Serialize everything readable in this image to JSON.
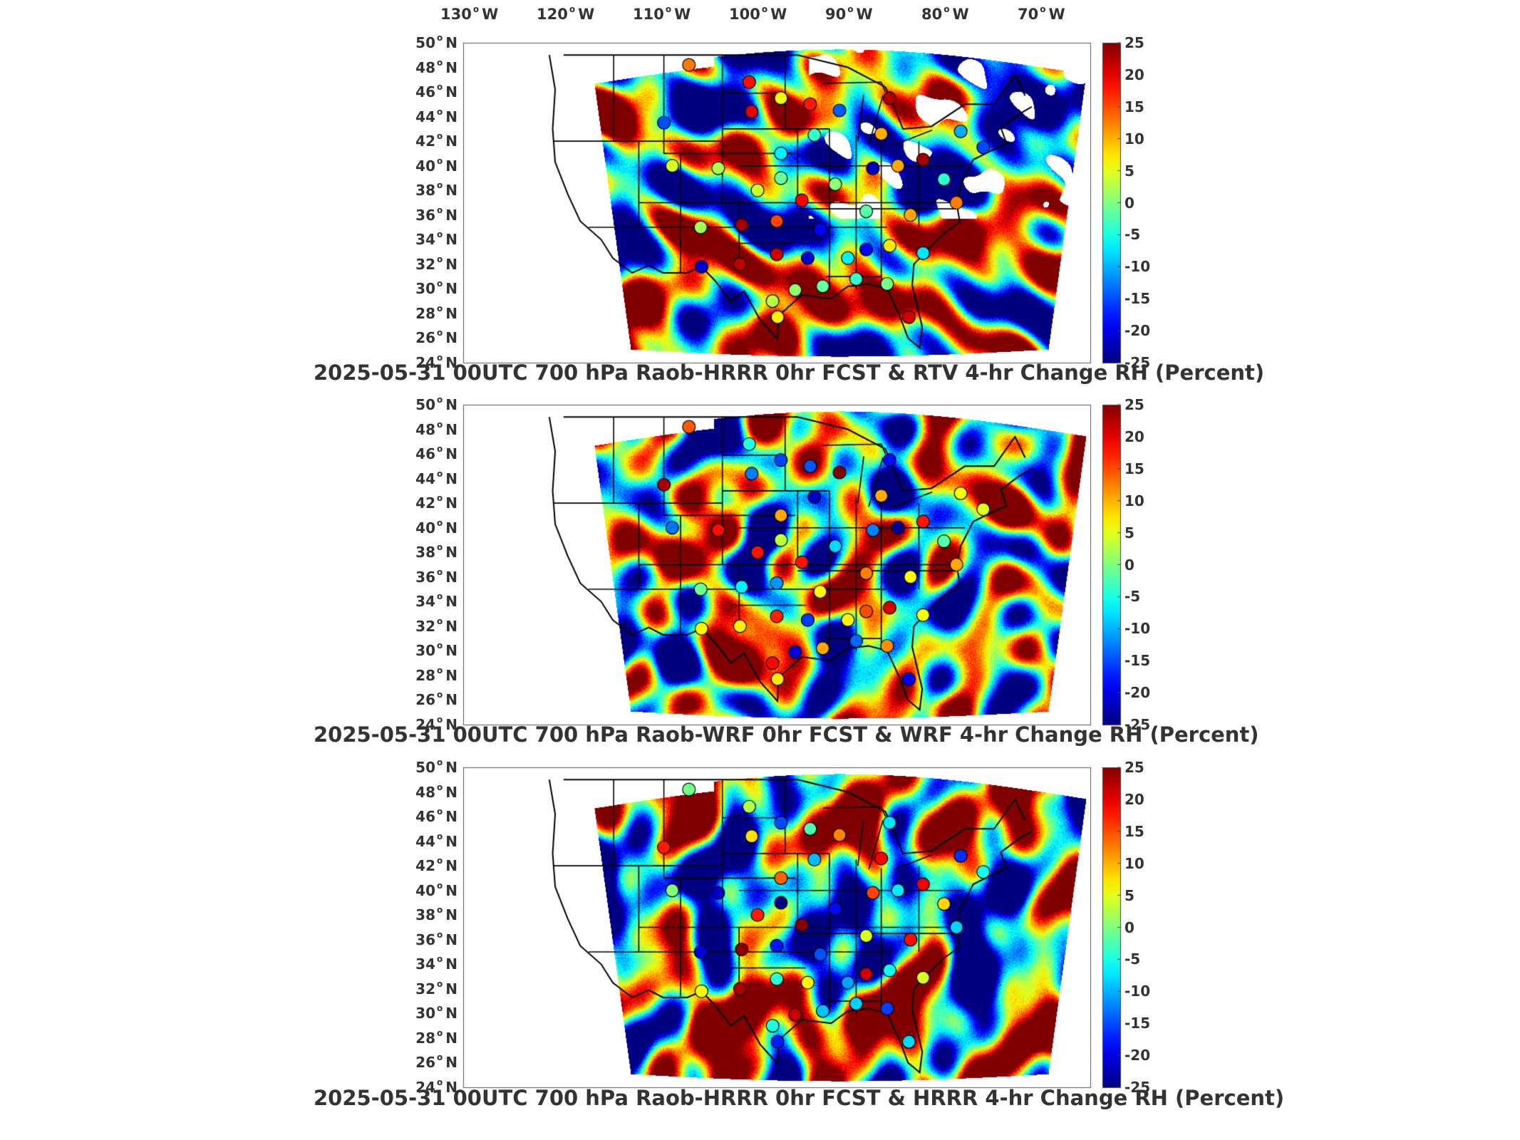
{
  "longitude_labels": [
    {
      "deg": "130",
      "dir": "W"
    },
    {
      "deg": "120",
      "dir": "W"
    },
    {
      "deg": "110",
      "dir": "W"
    },
    {
      "deg": "100",
      "dir": "W"
    },
    {
      "deg": "90",
      "dir": "W"
    },
    {
      "deg": "80",
      "dir": "W"
    },
    {
      "deg": "70",
      "dir": "W"
    }
  ],
  "latitude_labels": [
    {
      "deg": "50",
      "dir": "N"
    },
    {
      "deg": "48",
      "dir": "N"
    },
    {
      "deg": "46",
      "dir": "N"
    },
    {
      "deg": "44",
      "dir": "N"
    },
    {
      "deg": "42",
      "dir": "N"
    },
    {
      "deg": "40",
      "dir": "N"
    },
    {
      "deg": "38",
      "dir": "N"
    },
    {
      "deg": "36",
      "dir": "N"
    },
    {
      "deg": "34",
      "dir": "N"
    },
    {
      "deg": "32",
      "dir": "N"
    },
    {
      "deg": "30",
      "dir": "N"
    },
    {
      "deg": "28",
      "dir": "N"
    },
    {
      "deg": "26",
      "dir": "N"
    },
    {
      "deg": "24",
      "dir": "N"
    }
  ],
  "colorbar": {
    "ticks": [
      "25",
      "20",
      "15",
      "10",
      "5",
      "0",
      "-5",
      "-10",
      "-15",
      "-20",
      "-25"
    ],
    "colormap": "jet",
    "range": [
      -25,
      25
    ]
  },
  "panels": [
    {
      "title": "2025-05-31 00UTC 700 hPa Raob-HRRR 0hr FCST & RTV 4-hr Change RH (Percent)",
      "seed": 11,
      "missing_areas": true
    },
    {
      "title": "2025-05-31 00UTC 700 hPa Raob-WRF 0hr FCST & WRF 4-hr Change RH (Percent)",
      "seed": 23,
      "missing_areas": false
    },
    {
      "title": "2025-05-31 00UTC 700 hPa Raob-HRRR 0hr FCST & HRRR 4-hr Change RH (Percent)",
      "seed": 37,
      "missing_areas": false
    }
  ],
  "colors": {
    "outline": "#000000",
    "missing": "#ffffff"
  }
}
